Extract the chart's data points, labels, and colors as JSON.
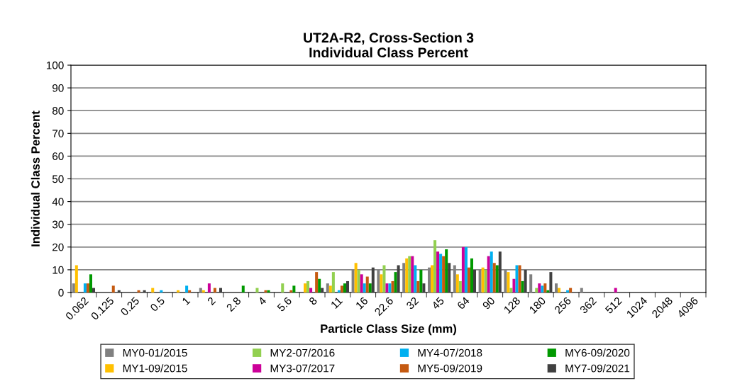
{
  "chart_data": {
    "type": "bar",
    "title": "UT2A-R2, Cross-Section 3\nIndividual Class Percent",
    "xlabel": "Particle Class Size (mm)",
    "ylabel": "Individual Class Percent",
    "categories": [
      "0.062",
      "0.125",
      "0.25",
      "0.5",
      "1",
      "2",
      "2.8",
      "4",
      "5.6",
      "8",
      "11",
      "16",
      "22.6",
      "32",
      "45",
      "64",
      "90",
      "128",
      "180",
      "256",
      "362",
      "512",
      "1024",
      "2048",
      "4096"
    ],
    "series": [
      {
        "name": "MY0-01/2015",
        "color": "#808080",
        "values": [
          4,
          0,
          0,
          0,
          0,
          2,
          0,
          0,
          0,
          0,
          4,
          10,
          10,
          13,
          11,
          12,
          10,
          10,
          8,
          4,
          2,
          0,
          0,
          0,
          0
        ]
      },
      {
        "name": "MY1-09/2015",
        "color": "#ffc000",
        "values": [
          12,
          0,
          0,
          2,
          1,
          1,
          0,
          0,
          0,
          4,
          3,
          13,
          8,
          15,
          12,
          8,
          11,
          9,
          0,
          2,
          0,
          0,
          0,
          0,
          0
        ]
      },
      {
        "name": "MY2-07/2016",
        "color": "#92d050",
        "values": [
          0,
          0,
          0,
          0,
          0,
          0,
          0,
          2,
          4,
          5,
          9,
          10,
          12,
          16,
          23,
          5,
          10,
          2,
          2,
          0,
          0,
          0,
          0,
          0,
          0
        ]
      },
      {
        "name": "MY3-07/2017",
        "color": "#cc0099",
        "values": [
          0,
          0,
          0,
          0,
          0,
          4,
          0,
          0,
          0,
          2,
          0,
          8,
          4,
          16,
          18,
          20,
          16,
          6,
          4,
          0,
          0,
          2,
          0,
          0,
          0
        ]
      },
      {
        "name": "MY4-07/2018",
        "color": "#00b0f0",
        "values": [
          4,
          0,
          0,
          1,
          3,
          0,
          0,
          0,
          0,
          0,
          1,
          4,
          4,
          12,
          17,
          20,
          18,
          12,
          3,
          1,
          0,
          0,
          0,
          0,
          0
        ]
      },
      {
        "name": "MY5-09/2019",
        "color": "#c55a11",
        "values": [
          4,
          3,
          1,
          0,
          1,
          2,
          0,
          1,
          1,
          9,
          3,
          7,
          5,
          5,
          16,
          11,
          13,
          12,
          4,
          2,
          0,
          0,
          0,
          0,
          0
        ]
      },
      {
        "name": "MY6-09/2020",
        "color": "#009900",
        "values": [
          8,
          0,
          0,
          0,
          0,
          0,
          3,
          1,
          3,
          6,
          4,
          4,
          9,
          10,
          19,
          15,
          12,
          5,
          1,
          0,
          0,
          0,
          0,
          0,
          0
        ]
      },
      {
        "name": "MY7-09/2021",
        "color": "#404040",
        "values": [
          2,
          1,
          1,
          0,
          0,
          2,
          0,
          0,
          0,
          2,
          5,
          11,
          12,
          4,
          13,
          10,
          18,
          10,
          9,
          0,
          0,
          0,
          0,
          0,
          0
        ]
      }
    ],
    "ylim": [
      0,
      100
    ],
    "yticks": [
      0,
      10,
      20,
      30,
      40,
      50,
      60,
      70,
      80,
      90,
      100
    ],
    "grid": "y",
    "legend": "bottom"
  }
}
